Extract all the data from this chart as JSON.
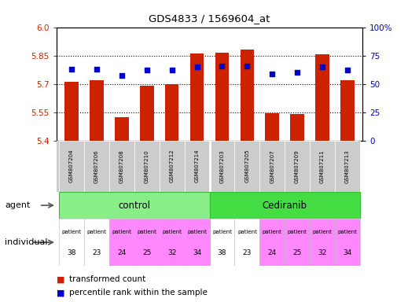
{
  "title": "GDS4833 / 1569604_at",
  "samples": [
    "GSM807204",
    "GSM807206",
    "GSM807208",
    "GSM807210",
    "GSM807212",
    "GSM807214",
    "GSM807203",
    "GSM807205",
    "GSM807207",
    "GSM807209",
    "GSM807211",
    "GSM807213"
  ],
  "bar_values": [
    5.71,
    5.72,
    5.525,
    5.69,
    5.7,
    5.86,
    5.865,
    5.88,
    5.545,
    5.54,
    5.855,
    5.72
  ],
  "dot_values": [
    63,
    63,
    57,
    62,
    62,
    65,
    66,
    66,
    59,
    60,
    65,
    62
  ],
  "ymin": 5.4,
  "ymax": 6.0,
  "yticks": [
    5.4,
    5.55,
    5.7,
    5.85,
    6.0
  ],
  "y2ticks": [
    0,
    25,
    50,
    75,
    100
  ],
  "y2labels": [
    "0",
    "25",
    "50",
    "75",
    "100%"
  ],
  "bar_color": "#cc2200",
  "dot_color": "#0000cc",
  "bar_width": 0.55,
  "tick_label_color_left": "#cc2200",
  "tick_label_color_right": "#0000bb",
  "agent_green": "#88ee88",
  "agent_green2": "#44dd44",
  "indiv_white": "#ffffff",
  "indiv_pink": "#ff88ff",
  "indiv_pink2": "#ee44ee",
  "sample_grey": "#cccccc",
  "control_count": 6,
  "cediranib_count": 6,
  "indiv_numbers": [
    "38",
    "23",
    "24",
    "25",
    "32",
    "34",
    "38",
    "23",
    "24",
    "25",
    "32",
    "34"
  ],
  "indiv_colors": [
    "#ffffff",
    "#ffffff",
    "#ff88ff",
    "#ff88ff",
    "#ff88ff",
    "#ff88ff",
    "#ffffff",
    "#ffffff",
    "#ff88ff",
    "#ff88ff",
    "#ff88ff",
    "#ff88ff"
  ]
}
